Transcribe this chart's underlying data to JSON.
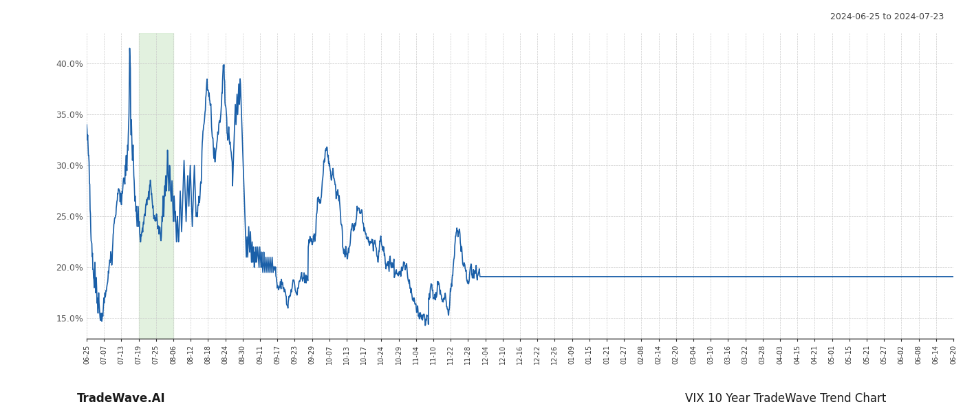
{
  "title_right": "2024-06-25 to 2024-07-23",
  "title_bottom_left": "TradeWave.AI",
  "title_bottom_right": "VIX 10 Year TradeWave Trend Chart",
  "line_color": "#1a5fa8",
  "line_width": 1.2,
  "background_color": "#ffffff",
  "grid_color": "#cccccc",
  "highlight_color": "#d6ecd2",
  "highlight_alpha": 0.6,
  "ylim": [
    13.0,
    43.0
  ],
  "yticks": [
    15.0,
    20.0,
    25.0,
    30.0,
    35.0,
    40.0
  ],
  "xtick_labels": [
    "06-25",
    "07-07",
    "07-13",
    "07-19",
    "07-25",
    "08-06",
    "08-12",
    "08-18",
    "08-24",
    "08-30",
    "09-11",
    "09-17",
    "09-23",
    "09-29",
    "10-07",
    "10-13",
    "10-17",
    "10-24",
    "10-29",
    "11-04",
    "11-10",
    "11-22",
    "11-28",
    "12-04",
    "12-10",
    "12-16",
    "12-22",
    "12-26",
    "01-09",
    "01-15",
    "01-21",
    "01-27",
    "02-08",
    "02-14",
    "02-20",
    "03-04",
    "03-10",
    "03-16",
    "03-22",
    "03-28",
    "04-03",
    "04-15",
    "04-21",
    "05-01",
    "05-15",
    "05-21",
    "05-27",
    "06-02",
    "06-08",
    "06-14",
    "06-20"
  ]
}
